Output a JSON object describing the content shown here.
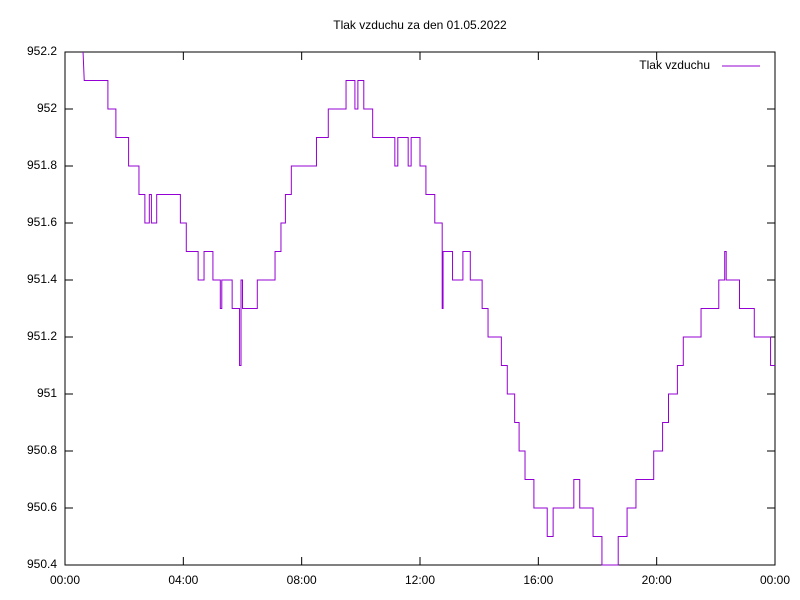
{
  "chart_data": {
    "type": "line",
    "title": "Tlak vzduchu za den 01.05.2022",
    "x": [
      0.61,
      0.65,
      1.45,
      1.45,
      1.72,
      1.72,
      2.15,
      2.15,
      2.5,
      2.5,
      2.7,
      2.7,
      2.85,
      2.85,
      2.92,
      2.92,
      3.1,
      3.1,
      3.9,
      3.9,
      4.1,
      4.1,
      4.5,
      4.5,
      4.7,
      4.7,
      5.0,
      5.0,
      5.25,
      5.25,
      5.3,
      5.3,
      5.65,
      5.65,
      5.9,
      5.9,
      5.95,
      5.95,
      6.0,
      6.0,
      6.5,
      6.5,
      7.1,
      7.1,
      7.3,
      7.3,
      7.45,
      7.45,
      7.65,
      7.65,
      8.5,
      8.5,
      8.9,
      8.9,
      9.5,
      9.5,
      9.8,
      9.8,
      9.9,
      9.9,
      10.1,
      10.1,
      10.4,
      10.4,
      11.15,
      11.15,
      11.25,
      11.25,
      11.6,
      11.6,
      11.7,
      11.7,
      12.0,
      12.0,
      12.2,
      12.2,
      12.5,
      12.5,
      12.75,
      12.75,
      12.78,
      12.78,
      13.1,
      13.1,
      13.45,
      13.45,
      13.7,
      13.7,
      14.1,
      14.1,
      14.3,
      14.3,
      14.75,
      14.75,
      14.95,
      14.95,
      15.2,
      15.2,
      15.35,
      15.35,
      15.55,
      15.55,
      15.85,
      15.85,
      16.3,
      16.3,
      16.5,
      16.5,
      17.2,
      17.2,
      17.4,
      17.4,
      17.85,
      17.85,
      18.15,
      18.15,
      18.7,
      18.7,
      19.0,
      19.0,
      19.3,
      19.3,
      19.9,
      19.9,
      20.2,
      20.2,
      20.4,
      20.4,
      20.7,
      20.7,
      20.9,
      20.9,
      21.5,
      21.5,
      22.1,
      22.1,
      22.3,
      22.3,
      22.35,
      22.35,
      22.8,
      22.8,
      23.3,
      23.3,
      23.85,
      23.85,
      24.0
    ],
    "series": [
      {
        "name": "Tlak vzduchu",
        "color": "#9400d3",
        "values": [
          952.2,
          952.1,
          952.1,
          952.0,
          952.0,
          951.9,
          951.9,
          951.8,
          951.8,
          951.7,
          951.7,
          951.6,
          951.6,
          951.7,
          951.7,
          951.6,
          951.6,
          951.7,
          951.7,
          951.6,
          951.6,
          951.5,
          951.5,
          951.4,
          951.4,
          951.5,
          951.5,
          951.4,
          951.4,
          951.3,
          951.3,
          951.4,
          951.4,
          951.3,
          951.3,
          951.1,
          951.1,
          951.4,
          951.4,
          951.3,
          951.3,
          951.4,
          951.4,
          951.5,
          951.5,
          951.6,
          951.6,
          951.7,
          951.7,
          951.8,
          951.8,
          951.9,
          951.9,
          952.0,
          952.0,
          952.1,
          952.1,
          952.0,
          952.0,
          952.1,
          952.1,
          952.0,
          952.0,
          951.9,
          951.9,
          951.8,
          951.8,
          951.9,
          951.9,
          951.8,
          951.8,
          951.9,
          951.9,
          951.8,
          951.8,
          951.7,
          951.7,
          951.6,
          951.6,
          951.3,
          951.3,
          951.5,
          951.5,
          951.4,
          951.4,
          951.5,
          951.5,
          951.4,
          951.4,
          951.3,
          951.3,
          951.2,
          951.2,
          951.1,
          951.1,
          951.0,
          951.0,
          950.9,
          950.9,
          950.8,
          950.8,
          950.7,
          950.7,
          950.6,
          950.6,
          950.5,
          950.5,
          950.6,
          950.6,
          950.7,
          950.7,
          950.6,
          950.6,
          950.5,
          950.5,
          950.4,
          950.4,
          950.5,
          950.5,
          950.6,
          950.6,
          950.7,
          950.7,
          950.8,
          950.8,
          950.9,
          950.9,
          951.0,
          951.0,
          951.1,
          951.1,
          951.2,
          951.2,
          951.3,
          951.3,
          951.4,
          951.4,
          951.5,
          951.5,
          951.4,
          951.4,
          951.3,
          951.3,
          951.2,
          951.2,
          951.1,
          951.1
        ]
      }
    ],
    "xlim": [
      0,
      24
    ],
    "xticks": [
      {
        "value": 0,
        "label": "00:00"
      },
      {
        "value": 4,
        "label": "04:00"
      },
      {
        "value": 8,
        "label": "08:00"
      },
      {
        "value": 12,
        "label": "12:00"
      },
      {
        "value": 16,
        "label": "16:00"
      },
      {
        "value": 20,
        "label": "20:00"
      },
      {
        "value": 24,
        "label": "00:00"
      }
    ],
    "ylim": [
      950.4,
      952.2
    ],
    "yticks": [
      950.4,
      950.6,
      950.8,
      951,
      951.2,
      951.4,
      951.6,
      951.8,
      952,
      952.2
    ],
    "grid": false,
    "legend": "top-right"
  }
}
